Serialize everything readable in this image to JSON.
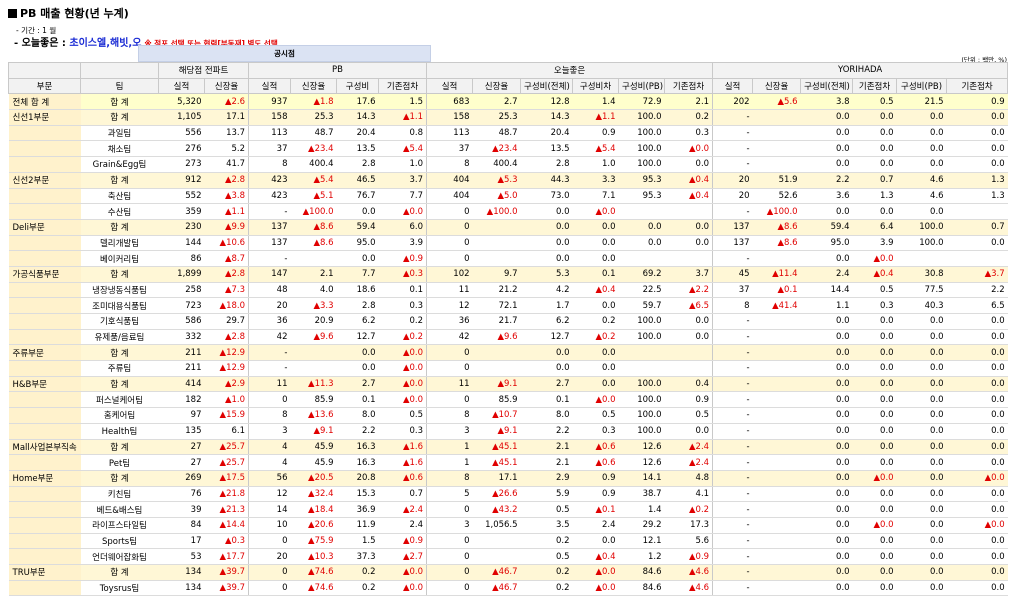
{
  "report": {
    "title": "PB 매출 현황(년 누계)",
    "period": "- 기간 : 1 월",
    "subtitle_prefix": "- 오늘좋은 : ",
    "subtitle_brands": "초이스엘,해빗,오",
    "note": "※ 점포 선택 또는 협력[부동재] 별도 선택",
    "subtab": "공시점",
    "unit": "(단위 : 백만, %)"
  },
  "header": {
    "group_top": [
      "해당점 전파트",
      "PB",
      "오늘좋은",
      "YORIHADA"
    ],
    "col_div": "부문",
    "col_team": "팀",
    "cols": [
      "실적",
      "신장율",
      "실적",
      "신장율",
      "구성비",
      "기존점차",
      "실적",
      "신장율",
      "구성비(전체)",
      "구성비차",
      "구성비(PB)",
      "기존점차",
      "실적",
      "신장율",
      "구성비(전체)",
      "기존점차",
      "구성비(PB)",
      "기존점차"
    ]
  },
  "rows": [
    {
      "type": "total",
      "div": "전체 합 계",
      "team": "합 계",
      "v": [
        "5,320",
        "▲2.6",
        "937",
        "▲1.8",
        "17.6",
        "1.5",
        "683",
        "2.7",
        "12.8",
        "1.4",
        "72.9",
        "2.1",
        "202",
        "▲5.6",
        "3.8",
        "0.5",
        "21.5",
        "0.9"
      ]
    },
    {
      "type": "div",
      "div": "신선1부문",
      "team": "합 계",
      "v": [
        "1,105",
        "17.1",
        "158",
        "25.3",
        "14.3",
        "▲1.1",
        "158",
        "25.3",
        "14.3",
        "▲1.1",
        "100.0",
        "0.2",
        "-",
        "",
        "0.0",
        "0.0",
        "0.0",
        "0.0"
      ]
    },
    {
      "type": "row",
      "div": "",
      "team": "과일팀",
      "v": [
        "556",
        "13.7",
        "113",
        "48.7",
        "20.4",
        "0.8",
        "113",
        "48.7",
        "20.4",
        "0.9",
        "100.0",
        "0.3",
        "-",
        "",
        "0.0",
        "0.0",
        "0.0",
        "0.0"
      ]
    },
    {
      "type": "row",
      "div": "",
      "team": "채소팀",
      "v": [
        "276",
        "5.2",
        "37",
        "▲23.4",
        "13.5",
        "▲5.4",
        "37",
        "▲23.4",
        "13.5",
        "▲5.4",
        "100.0",
        "▲0.0",
        "-",
        "",
        "0.0",
        "0.0",
        "0.0",
        "0.0"
      ]
    },
    {
      "type": "row",
      "div": "",
      "team": "Grain&Egg팀",
      "v": [
        "273",
        "41.7",
        "8",
        "400.4",
        "2.8",
        "1.0",
        "8",
        "400.4",
        "2.8",
        "1.0",
        "100.0",
        "0.0",
        "-",
        "",
        "0.0",
        "0.0",
        "0.0",
        "0.0"
      ]
    },
    {
      "type": "div",
      "div": "신선2부문",
      "team": "합 계",
      "v": [
        "912",
        "▲2.8",
        "423",
        "▲5.4",
        "46.5",
        "3.7",
        "404",
        "▲5.3",
        "44.3",
        "3.3",
        "95.3",
        "▲0.4",
        "20",
        "51.9",
        "2.2",
        "0.7",
        "4.6",
        "1.3"
      ]
    },
    {
      "type": "row",
      "div": "",
      "team": "축산팀",
      "v": [
        "552",
        "▲3.8",
        "423",
        "▲5.1",
        "76.7",
        "7.7",
        "404",
        "▲5.0",
        "73.0",
        "7.1",
        "95.3",
        "▲0.4",
        "20",
        "52.6",
        "3.6",
        "1.3",
        "4.6",
        "1.3"
      ]
    },
    {
      "type": "row",
      "div": "",
      "team": "수산팀",
      "v": [
        "359",
        "▲1.1",
        "-",
        "▲100.0",
        "0.0",
        "▲0.0",
        "0",
        "▲100.0",
        "0.0",
        "▲0.0",
        "",
        "",
        "-",
        "▲100.0",
        "0.0",
        "0.0",
        "0.0",
        ""
      ]
    },
    {
      "type": "div",
      "div": "Deli부문",
      "team": "합 계",
      "v": [
        "230",
        "▲9.9",
        "137",
        "▲8.6",
        "59.4",
        "6.0",
        "0",
        "",
        "0.0",
        "0.0",
        "0.0",
        "0.0",
        "137",
        "▲8.6",
        "59.4",
        "6.4",
        "100.0",
        "0.7"
      ]
    },
    {
      "type": "row",
      "div": "",
      "team": "델리개발팀",
      "v": [
        "144",
        "▲10.6",
        "137",
        "▲8.6",
        "95.0",
        "3.9",
        "0",
        "",
        "0.0",
        "0.0",
        "0.0",
        "0.0",
        "137",
        "▲8.6",
        "95.0",
        "3.9",
        "100.0",
        "0.0"
      ]
    },
    {
      "type": "row",
      "div": "",
      "team": "베이커리팀",
      "v": [
        "86",
        "▲8.7",
        "-",
        "",
        "0.0",
        "▲0.9",
        "0",
        "",
        "0.0",
        "0.0",
        "",
        "",
        "-",
        "",
        "0.0",
        "▲0.0",
        "",
        ""
      ]
    },
    {
      "type": "div",
      "div": "가공식품부문",
      "team": "합 계",
      "v": [
        "1,899",
        "▲2.8",
        "147",
        "2.1",
        "7.7",
        "▲0.3",
        "102",
        "9.7",
        "5.3",
        "0.1",
        "69.2",
        "3.7",
        "45",
        "▲11.4",
        "2.4",
        "▲0.4",
        "30.8",
        "▲3.7"
      ]
    },
    {
      "type": "row",
      "div": "",
      "team": "냉장냉동식품팀",
      "v": [
        "258",
        "▲7.3",
        "48",
        "4.0",
        "18.6",
        "0.1",
        "11",
        "21.2",
        "4.2",
        "▲0.4",
        "22.5",
        "▲2.2",
        "37",
        "▲0.1",
        "14.4",
        "0.5",
        "77.5",
        "2.2"
      ]
    },
    {
      "type": "row",
      "div": "",
      "team": "조미대용식품팀",
      "v": [
        "723",
        "▲18.0",
        "20",
        "▲3.3",
        "2.8",
        "0.3",
        "12",
        "72.1",
        "1.7",
        "0.0",
        "59.7",
        "▲6.5",
        "8",
        "▲41.4",
        "1.1",
        "0.3",
        "40.3",
        "6.5"
      ]
    },
    {
      "type": "row",
      "div": "",
      "team": "기호식품팀",
      "v": [
        "586",
        "29.7",
        "36",
        "20.9",
        "6.2",
        "0.2",
        "36",
        "21.7",
        "6.2",
        "0.2",
        "100.0",
        "0.0",
        "-",
        "",
        "0.0",
        "0.0",
        "0.0",
        "0.0"
      ]
    },
    {
      "type": "row",
      "div": "",
      "team": "유제품/음료팀",
      "v": [
        "332",
        "▲2.8",
        "42",
        "▲9.6",
        "12.7",
        "▲0.2",
        "42",
        "▲9.6",
        "12.7",
        "▲0.2",
        "100.0",
        "0.0",
        "-",
        "",
        "0.0",
        "0.0",
        "0.0",
        "0.0"
      ]
    },
    {
      "type": "div",
      "div": "주류부문",
      "team": "합 계",
      "v": [
        "211",
        "▲12.9",
        "-",
        "",
        "0.0",
        "▲0.0",
        "0",
        "",
        "0.0",
        "0.0",
        "",
        "",
        "-",
        "",
        "0.0",
        "0.0",
        "0.0",
        "0.0"
      ]
    },
    {
      "type": "row",
      "div": "",
      "team": "주류팀",
      "v": [
        "211",
        "▲12.9",
        "-",
        "",
        "0.0",
        "▲0.0",
        "0",
        "",
        "0.0",
        "0.0",
        "",
        "",
        "-",
        "",
        "0.0",
        "0.0",
        "0.0",
        "0.0"
      ]
    },
    {
      "type": "div",
      "div": "H&B부문",
      "team": "합 계",
      "v": [
        "414",
        "▲2.9",
        "11",
        "▲11.3",
        "2.7",
        "▲0.0",
        "11",
        "▲9.1",
        "2.7",
        "0.0",
        "100.0",
        "0.4",
        "-",
        "",
        "0.0",
        "0.0",
        "0.0",
        "0.0"
      ]
    },
    {
      "type": "row",
      "div": "",
      "team": "퍼스널케어팀",
      "v": [
        "182",
        "▲1.0",
        "0",
        "85.9",
        "0.1",
        "▲0.0",
        "0",
        "85.9",
        "0.1",
        "▲0.0",
        "100.0",
        "0.9",
        "-",
        "",
        "0.0",
        "0.0",
        "0.0",
        "0.0"
      ]
    },
    {
      "type": "row",
      "div": "",
      "team": "홈케어팀",
      "v": [
        "97",
        "▲15.9",
        "8",
        "▲13.6",
        "8.0",
        "0.5",
        "8",
        "▲10.7",
        "8.0",
        "0.5",
        "100.0",
        "0.5",
        "-",
        "",
        "0.0",
        "0.0",
        "0.0",
        "0.0"
      ]
    },
    {
      "type": "row",
      "div": "",
      "team": "Health팀",
      "v": [
        "135",
        "6.1",
        "3",
        "▲9.1",
        "2.2",
        "0.3",
        "3",
        "▲9.1",
        "2.2",
        "0.3",
        "100.0",
        "0.0",
        "-",
        "",
        "0.0",
        "0.0",
        "0.0",
        "0.0"
      ]
    },
    {
      "type": "div",
      "div": "Mall사업본부직속",
      "team": "합 계",
      "v": [
        "27",
        "▲25.7",
        "4",
        "45.9",
        "16.3",
        "▲1.6",
        "1",
        "▲45.1",
        "2.1",
        "▲0.6",
        "12.6",
        "▲2.4",
        "-",
        "",
        "0.0",
        "0.0",
        "0.0",
        "0.0"
      ]
    },
    {
      "type": "row",
      "div": "",
      "team": "Pet팀",
      "v": [
        "27",
        "▲25.7",
        "4",
        "45.9",
        "16.3",
        "▲1.6",
        "1",
        "▲45.1",
        "2.1",
        "▲0.6",
        "12.6",
        "▲2.4",
        "-",
        "",
        "0.0",
        "0.0",
        "0.0",
        "0.0"
      ]
    },
    {
      "type": "div",
      "div": "Home부문",
      "team": "합 계",
      "v": [
        "269",
        "▲17.5",
        "56",
        "▲20.5",
        "20.8",
        "▲0.6",
        "8",
        "17.1",
        "2.9",
        "0.9",
        "14.1",
        "4.8",
        "-",
        "",
        "0.0",
        "▲0.0",
        "0.0",
        "▲0.0"
      ]
    },
    {
      "type": "row",
      "div": "",
      "team": "키친팀",
      "v": [
        "76",
        "▲21.8",
        "12",
        "▲32.4",
        "15.3",
        "0.7",
        "5",
        "▲26.6",
        "5.9",
        "0.9",
        "38.7",
        "4.1",
        "-",
        "",
        "0.0",
        "0.0",
        "0.0",
        "0.0"
      ]
    },
    {
      "type": "row",
      "div": "",
      "team": "베드&배스팀",
      "v": [
        "39",
        "▲21.3",
        "14",
        "▲18.4",
        "36.9",
        "▲2.4",
        "0",
        "▲43.2",
        "0.5",
        "▲0.1",
        "1.4",
        "▲0.2",
        "-",
        "",
        "0.0",
        "0.0",
        "0.0",
        "0.0"
      ]
    },
    {
      "type": "row",
      "div": "",
      "team": "라이프스타일팀",
      "v": [
        "84",
        "▲14.4",
        "10",
        "▲20.6",
        "11.9",
        "2.4",
        "3",
        "1,056.5",
        "3.5",
        "2.4",
        "29.2",
        "17.3",
        "-",
        "",
        "0.0",
        "▲0.0",
        "0.0",
        "▲0.0"
      ]
    },
    {
      "type": "row",
      "div": "",
      "team": "Sports팀",
      "v": [
        "17",
        "▲0.3",
        "0",
        "▲75.9",
        "1.5",
        "▲0.9",
        "0",
        "",
        "0.2",
        "0.0",
        "12.1",
        "5.6",
        "-",
        "",
        "0.0",
        "0.0",
        "0.0",
        "0.0"
      ]
    },
    {
      "type": "row",
      "div": "",
      "team": "언더웨어잡화팀",
      "v": [
        "53",
        "▲17.7",
        "20",
        "▲10.3",
        "37.3",
        "▲2.7",
        "0",
        "",
        "0.5",
        "▲0.4",
        "1.2",
        "▲0.9",
        "-",
        "",
        "0.0",
        "0.0",
        "0.0",
        "0.0"
      ]
    },
    {
      "type": "div",
      "div": "TRU부문",
      "team": "합 계",
      "v": [
        "134",
        "▲39.7",
        "0",
        "▲74.6",
        "0.2",
        "▲0.0",
        "0",
        "▲46.7",
        "0.2",
        "▲0.0",
        "84.6",
        "▲4.6",
        "-",
        "",
        "0.0",
        "0.0",
        "0.0",
        "0.0"
      ]
    },
    {
      "type": "row",
      "div": "",
      "team": "Toysrus팀",
      "v": [
        "134",
        "▲39.7",
        "0",
        "▲74.6",
        "0.2",
        "▲0.0",
        "0",
        "▲46.7",
        "0.2",
        "▲0.0",
        "84.6",
        "▲4.6",
        "-",
        "",
        "0.0",
        "0.0",
        "0.0",
        "0.0"
      ]
    }
  ]
}
